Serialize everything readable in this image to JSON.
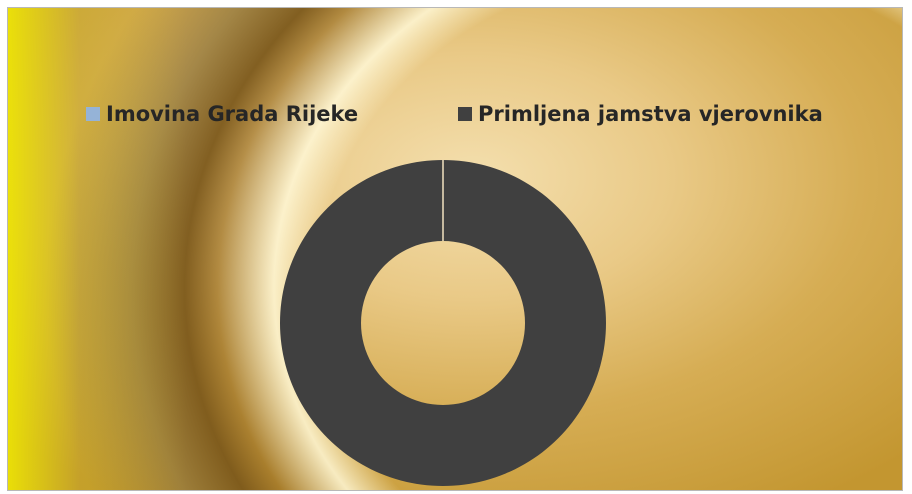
{
  "chart_data": {
    "type": "pie",
    "style": "donut",
    "title": "",
    "series": [
      {
        "name": "Imovina Grada Rijeke",
        "value": 0,
        "color": "#95b3d7"
      },
      {
        "name": "Primljena jamstva vjerovnika",
        "value": 100,
        "color": "#404040"
      }
    ],
    "legend_position": "top"
  }
}
